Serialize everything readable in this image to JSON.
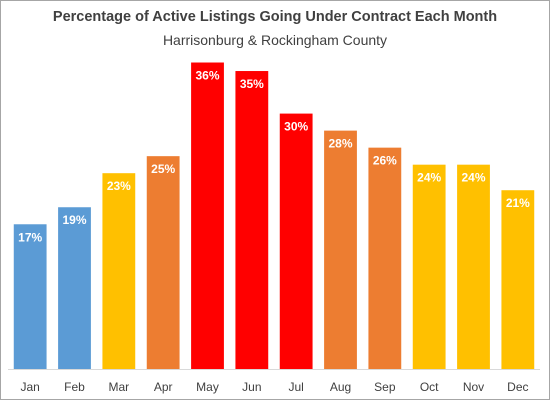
{
  "chart_data": {
    "type": "bar",
    "title": "Percentage of Active Listings Going Under Contract Each Month",
    "subtitle": "Harrisonburg & Rockingham County",
    "categories": [
      "Jan",
      "Feb",
      "Mar",
      "Apr",
      "May",
      "Jun",
      "Jul",
      "Aug",
      "Sep",
      "Oct",
      "Nov",
      "Dec"
    ],
    "values": [
      17,
      19,
      23,
      25,
      36,
      35,
      30,
      28,
      26,
      24,
      24,
      21
    ],
    "value_labels": [
      "17%",
      "19%",
      "23%",
      "25%",
      "36%",
      "35%",
      "30%",
      "28%",
      "26%",
      "24%",
      "24%",
      "21%"
    ],
    "bar_colors": [
      "#5b9bd5",
      "#5b9bd5",
      "#ffc000",
      "#ed7d31",
      "#ff0000",
      "#ff0000",
      "#ff0000",
      "#ed7d31",
      "#ed7d31",
      "#ffc000",
      "#ffc000",
      "#ffc000"
    ],
    "ylim": [
      0,
      37
    ],
    "grid": false,
    "legend": "none"
  }
}
